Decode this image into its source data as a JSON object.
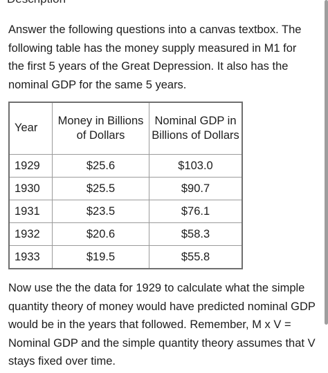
{
  "section_heading": "Description",
  "intro_text": "Answer the following questions into a canvas textbox. The following table has the money supply measured in M1 for the first 5 years of the Great Depression.  It also has the nominal GDP for the same 5 years.",
  "table": {
    "headers": {
      "year": "Year",
      "money": "Money in Billions of Dollars",
      "gdp": "Nominal GDP in Billions of Dollars"
    },
    "rows": [
      {
        "year": "1929",
        "money": "$25.6",
        "gdp": "$103.0"
      },
      {
        "year": "1930",
        "money": "$25.5",
        "gdp": "$90.7"
      },
      {
        "year": "1931",
        "money": "$23.5",
        "gdp": "$76.1"
      },
      {
        "year": "1932",
        "money": "$20.6",
        "gdp": "$58.3"
      },
      {
        "year": "1933",
        "money": "$19.5",
        "gdp": "$55.8"
      }
    ]
  },
  "followup_text": "Now use the the data for 1929 to calculate what the simple quantity theory of money would have predicted nominal GDP would be in the years that followed. Remember, M x V = Nominal GDP and the simple quantity theory assumes that V stays fixed over time."
}
